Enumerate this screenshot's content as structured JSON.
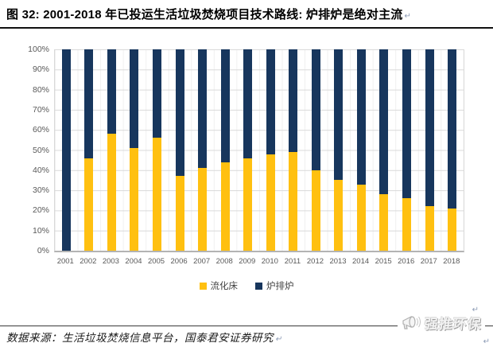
{
  "figure": {
    "title": "图 32: 2001-2018 年已投运生活垃圾焚烧项目技术路线: 炉排炉是绝对主流",
    "return_mark": "↵",
    "source_text": "数据来源：生活垃圾焚烧信息平台，国泰君安证券研究",
    "watermark_text": "强推环保",
    "watermark_icon": "megaphone-icon"
  },
  "chart_data": {
    "type": "bar",
    "stacked": true,
    "percent_stacked": true,
    "title": "",
    "xlabel": "",
    "ylabel": "",
    "categories": [
      "2001",
      "2002",
      "2003",
      "2004",
      "2005",
      "2006",
      "2007",
      "2008",
      "2009",
      "2010",
      "2011",
      "2012",
      "2013",
      "2014",
      "2015",
      "2016",
      "2017",
      "2018"
    ],
    "series": [
      {
        "name": "流化床",
        "color": "#FFC010",
        "values": [
          0,
          46,
          58,
          51,
          56,
          37,
          41,
          44,
          46,
          48,
          49,
          40,
          35,
          33,
          28,
          26,
          22,
          21
        ]
      },
      {
        "name": "炉排炉",
        "color": "#17365D",
        "values": [
          100,
          54,
          42,
          49,
          44,
          63,
          59,
          56,
          54,
          52,
          51,
          60,
          65,
          67,
          72,
          74,
          78,
          79
        ]
      }
    ],
    "ylim": [
      0,
      100
    ],
    "yticks_top_to_bottom": [
      "100%",
      "90%",
      "80%",
      "70%",
      "60%",
      "50%",
      "40%",
      "30%",
      "20%",
      "10%",
      "0%"
    ],
    "grid": "horizontal",
    "gridline_color": "#D9D9D9",
    "axis_label_color": "#595959",
    "legend_position": "bottom"
  }
}
